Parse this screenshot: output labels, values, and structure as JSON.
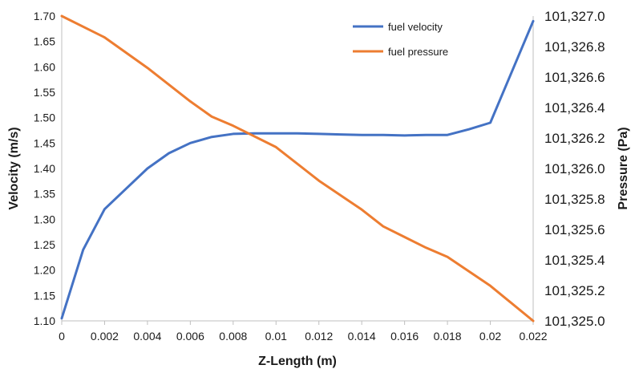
{
  "chart_data": {
    "type": "line",
    "xlabel": "Z-Length (m)",
    "ylabel": "Velocity (m/s)",
    "y2label": "Pressure (Pa)",
    "xlim": [
      0,
      0.022
    ],
    "ylim": [
      1.1,
      1.7
    ],
    "y2lim": [
      101325.0,
      101327.0
    ],
    "x_ticks": [
      "0",
      "0.002",
      "0.004",
      "0.006",
      "0.008",
      "0.01",
      "0.012",
      "0.014",
      "0.016",
      "0.018",
      "0.02",
      "0.022"
    ],
    "y_ticks": [
      "1.10",
      "1.15",
      "1.20",
      "1.25",
      "1.30",
      "1.35",
      "1.40",
      "1.45",
      "1.50",
      "1.55",
      "1.60",
      "1.65",
      "1.70"
    ],
    "y2_ticks": [
      "101,325.0",
      "101,325.2",
      "101,325.4",
      "101,325.6",
      "101,325.8",
      "101,326.0",
      "101,326.2",
      "101,326.4",
      "101,326.6",
      "101,326.8",
      "101,327.0"
    ],
    "grid": false,
    "legend_position": "top-right",
    "series": [
      {
        "name": "fuel velocity",
        "axis": "left",
        "color": "#4472C4",
        "x": [
          0,
          0.001,
          0.002,
          0.003,
          0.004,
          0.005,
          0.006,
          0.007,
          0.008,
          0.009,
          0.01,
          0.011,
          0.012,
          0.013,
          0.014,
          0.015,
          0.016,
          0.017,
          0.018,
          0.019,
          0.02,
          0.021,
          0.022
        ],
        "y": [
          1.105,
          1.24,
          1.32,
          1.36,
          1.4,
          1.43,
          1.45,
          1.462,
          1.468,
          1.469,
          1.469,
          1.469,
          1.468,
          1.467,
          1.466,
          1.466,
          1.465,
          1.466,
          1.466,
          1.477,
          1.49,
          1.59,
          1.69
        ]
      },
      {
        "name": "fuel pressure",
        "axis": "right",
        "color": "#ED7D31",
        "x": [
          0,
          0.002,
          0.004,
          0.006,
          0.007,
          0.008,
          0.01,
          0.012,
          0.014,
          0.015,
          0.016,
          0.017,
          0.018,
          0.02,
          0.022
        ],
        "y": [
          101327.0,
          101326.86,
          101326.66,
          101326.44,
          101326.34,
          101326.28,
          101326.14,
          101325.92,
          101325.73,
          101325.62,
          101325.55,
          101325.48,
          101325.42,
          101325.23,
          101325.0
        ]
      }
    ]
  }
}
